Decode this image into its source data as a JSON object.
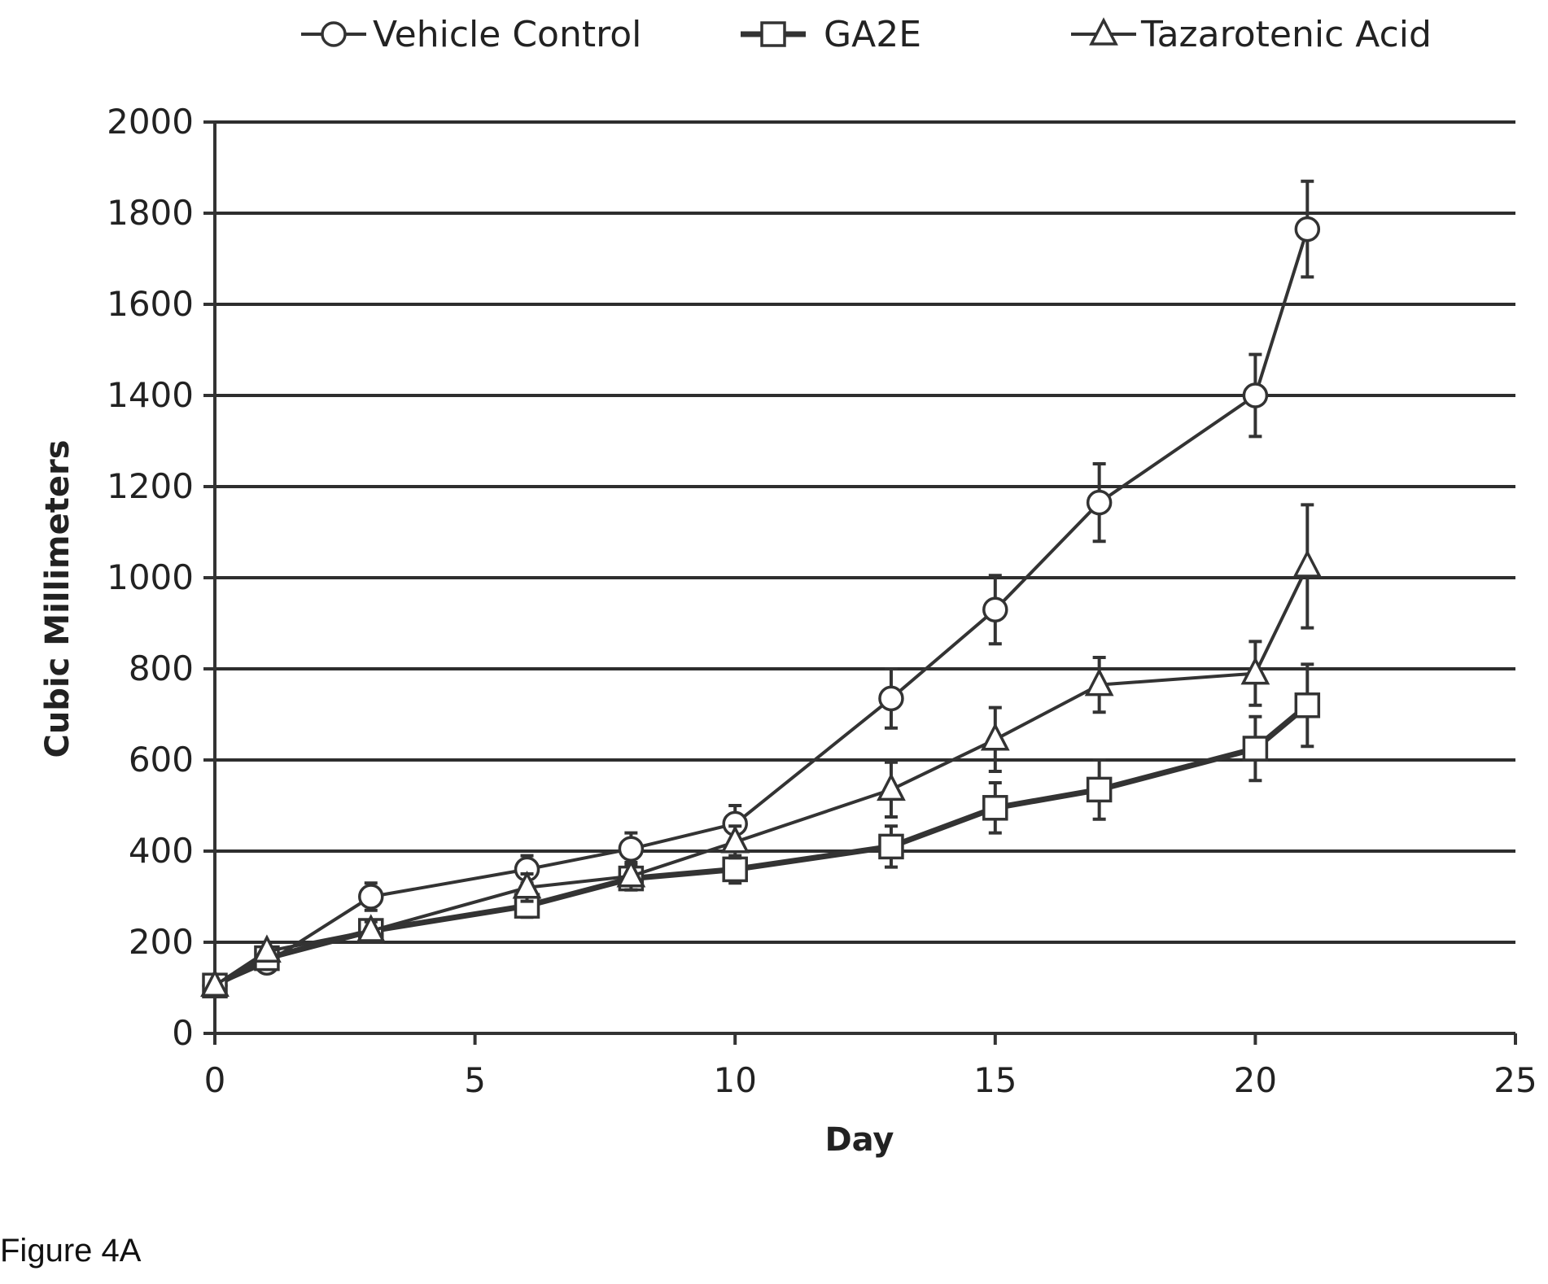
{
  "figure_label": "Figure 4A",
  "chart_data": {
    "type": "line",
    "title": "",
    "xlabel": "Day",
    "ylabel": "Cubic Millimeters",
    "xlim": [
      0,
      25
    ],
    "ylim": [
      0,
      2000
    ],
    "x_ticks": [
      0,
      5,
      10,
      15,
      20,
      25
    ],
    "y_ticks": [
      0,
      200,
      400,
      600,
      800,
      1000,
      1200,
      1400,
      1600,
      1800,
      2000
    ],
    "grid": "horizontal",
    "legend_position": "top",
    "series": [
      {
        "name": "Vehicle Control",
        "marker": "circle",
        "x": [
          0,
          1,
          3,
          6,
          8,
          10,
          13,
          15,
          17,
          20,
          21
        ],
        "y": [
          105,
          155,
          300,
          360,
          405,
          460,
          735,
          930,
          1165,
          1400,
          1765
        ],
        "error": [
          0,
          0,
          30,
          30,
          35,
          40,
          65,
          75,
          85,
          90,
          105
        ]
      },
      {
        "name": "GA2E",
        "marker": "square",
        "x": [
          0,
          1,
          3,
          6,
          8,
          10,
          13,
          15,
          17,
          20,
          21
        ],
        "y": [
          105,
          165,
          225,
          280,
          340,
          360,
          410,
          495,
          535,
          625,
          720
        ],
        "error": [
          0,
          0,
          20,
          25,
          25,
          30,
          45,
          55,
          65,
          70,
          90
        ]
      },
      {
        "name": "Tazarotenic Acid",
        "marker": "triangle",
        "x": [
          0,
          1,
          3,
          6,
          8,
          10,
          13,
          15,
          17,
          20,
          21
        ],
        "y": [
          105,
          180,
          225,
          320,
          345,
          420,
          535,
          645,
          765,
          790,
          1025
        ],
        "error": [
          0,
          0,
          20,
          30,
          30,
          35,
          60,
          70,
          60,
          70,
          135
        ]
      }
    ]
  }
}
